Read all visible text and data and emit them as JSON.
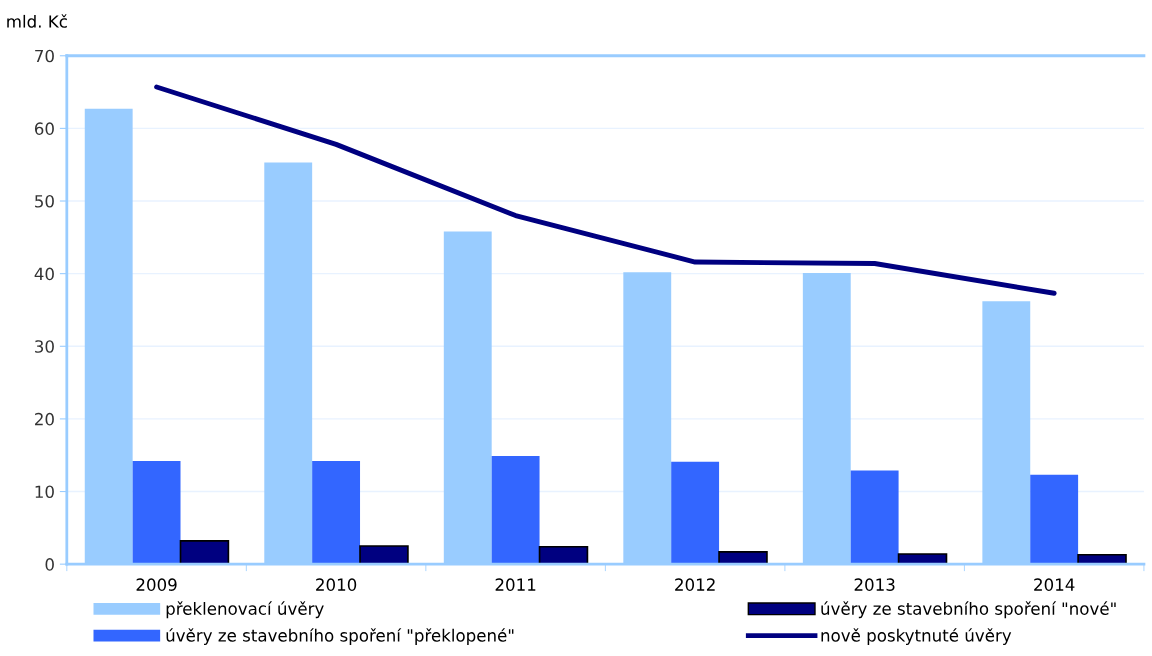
{
  "chart_data": {
    "type": "bar",
    "ylabel": "mld. Kč",
    "categories": [
      "2009",
      "2010",
      "2011",
      "2012",
      "2013",
      "2014"
    ],
    "series": [
      {
        "name": "překlenovací úvěry",
        "color": "#99ccff",
        "values": [
          62.7,
          55.3,
          45.8,
          40.2,
          40.1,
          36.2
        ]
      },
      {
        "name": "úvěry ze stavebního spoření \"překlopené\"",
        "color": "#3366ff",
        "values": [
          14.2,
          14.2,
          14.9,
          14.1,
          12.9,
          12.3
        ]
      },
      {
        "name": "úvěry ze stavebního spoření \"nové\"",
        "color": "#000080",
        "values": [
          3.2,
          2.5,
          2.4,
          1.7,
          1.4,
          1.3
        ]
      },
      {
        "name": "nově poskytnuté úvěry",
        "color": "#000080",
        "type": "line",
        "values": [
          65.7,
          57.8,
          48.0,
          41.6,
          41.4,
          37.3
        ]
      }
    ],
    "ylim": [
      0,
      70
    ],
    "yticks": [
      0,
      10,
      20,
      30,
      40,
      50,
      60,
      70
    ],
    "grid": "y",
    "legend": "bottom"
  }
}
